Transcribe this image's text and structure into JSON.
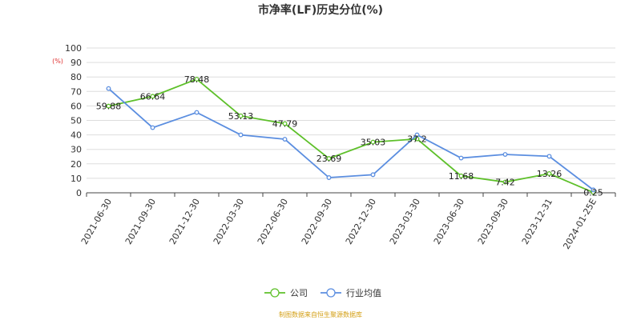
{
  "chart_data": {
    "type": "line",
    "title": "市净率(LF)历史分位(%)",
    "unit": "(%)",
    "ylim": [
      0,
      100
    ],
    "yticks": [
      0,
      10,
      20,
      30,
      40,
      50,
      60,
      70,
      80,
      90,
      100
    ],
    "grid": true,
    "legend_position": "bottom-center",
    "categories": [
      "2021-06-30",
      "2021-09-30",
      "2021-12-30",
      "2022-03-30",
      "2022-06-30",
      "2022-09-30",
      "2022-12-30",
      "2023-03-30",
      "2023-06-30",
      "2023-09-30",
      "2023-12-31",
      "2024-01-25E"
    ],
    "series": [
      {
        "name": "公司",
        "color": "#5ec02a",
        "values": [
          59.88,
          66.64,
          78.48,
          53.13,
          47.79,
          23.69,
          35.03,
          37.2,
          11.68,
          7.42,
          13.26,
          0.25
        ],
        "labels": [
          "59.88",
          "66.64",
          "78.48",
          "53.13",
          "47.79",
          "23.69",
          "35.03",
          "37.2",
          "11.68",
          "7.42",
          "13.26",
          "0.25"
        ]
      },
      {
        "name": "行业均值",
        "color": "#5b8ee0",
        "values": [
          72,
          45,
          55.5,
          40,
          37,
          10.5,
          12.5,
          40,
          24,
          26.5,
          25.2,
          2
        ]
      }
    ]
  },
  "source_note": "制图数据来自恒生聚源数据库"
}
